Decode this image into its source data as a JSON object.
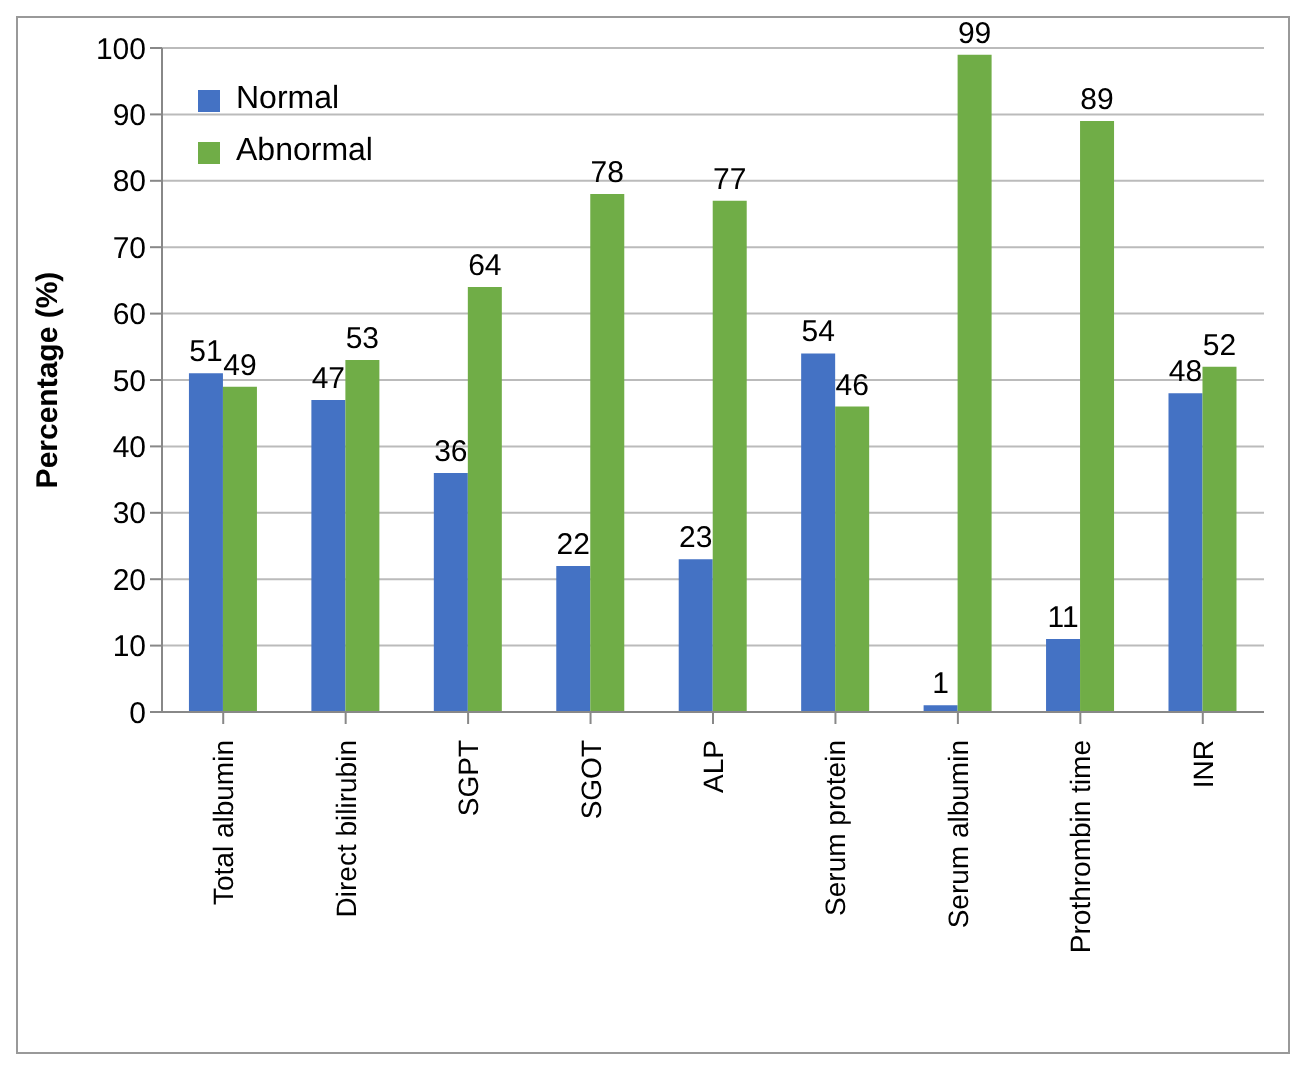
{
  "chart_data": {
    "type": "bar",
    "ylabel": "Percentage (%)",
    "categories": [
      "Total albumin",
      "Direct bilirubin",
      "SGPT",
      "SGOT",
      "ALP",
      "Serum protein",
      "Serum albumin",
      "Prothrombin time",
      "INR"
    ],
    "series": [
      {
        "name": "Normal",
        "color": "#4472c4",
        "values": [
          51,
          47,
          36,
          22,
          23,
          54,
          1,
          11,
          48
        ]
      },
      {
        "name": "Abnormal",
        "color": "#70ad47",
        "values": [
          49,
          53,
          64,
          78,
          77,
          46,
          99,
          89,
          52
        ]
      }
    ],
    "ylim": [
      0,
      100
    ],
    "yticks": [
      0,
      10,
      20,
      30,
      40,
      50,
      60,
      70,
      80,
      90,
      100
    ],
    "grid": "y",
    "legend": "top left",
    "data_labels": true
  }
}
